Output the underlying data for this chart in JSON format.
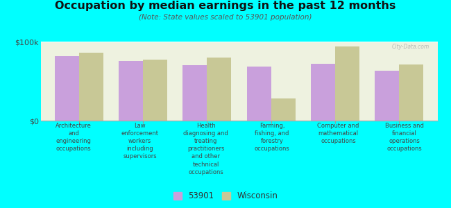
{
  "title": "Occupation by median earnings in the past 12 months",
  "subtitle": "(Note: State values scaled to 53901 population)",
  "background_color": "#00FFFF",
  "plot_bg_color": "#eef2e0",
  "categories": [
    "Architecture\nand\nengineering\noccupations",
    "Law\nenforcement\nworkers\nincluding\nsupervisors",
    "Health\ndiagnosing and\ntreating\npractitioners\nand other\ntechnical\noccupations",
    "Farming,\nfishing, and\nforestry\noccupations",
    "Computer and\nmathematical\noccupations",
    "Business and\nfinancial\noperations\noccupations"
  ],
  "values_53901": [
    82000,
    75000,
    70000,
    68000,
    72000,
    63000
  ],
  "values_wisconsin": [
    86000,
    77000,
    80000,
    28000,
    94000,
    71000
  ],
  "color_53901": "#c9a0dc",
  "color_wisconsin": "#c8c896",
  "ylim": [
    0,
    100000
  ],
  "ytick_labels": [
    "$0",
    "$100k"
  ],
  "legend_53901": "53901",
  "legend_wisconsin": "Wisconsin",
  "watermark": "City-Data.com",
  "bar_width": 0.38
}
